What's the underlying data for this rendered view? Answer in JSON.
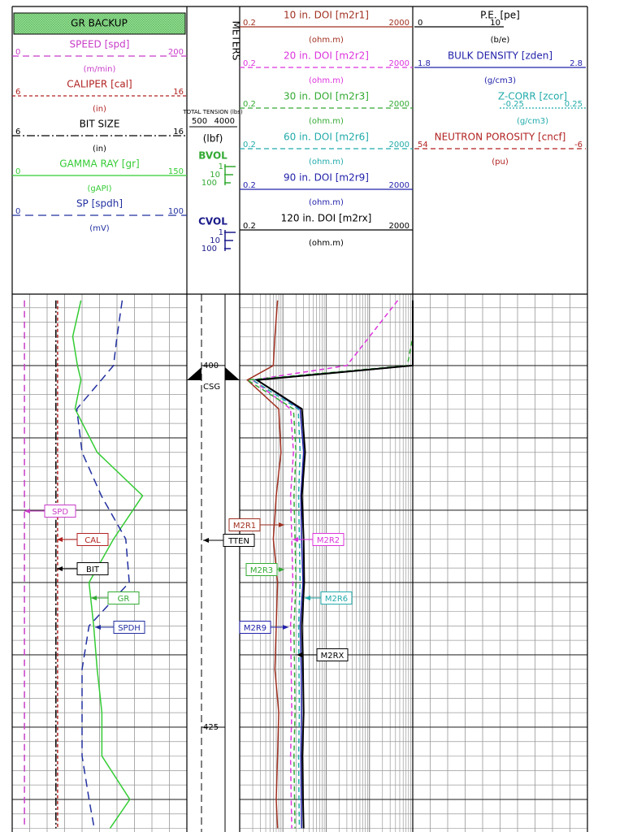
{
  "gr_track": {
    "title": "GR BACKUP",
    "curves": [
      {
        "name": "SPEED [spd]",
        "left": 0,
        "right": 200,
        "unit": "(m/min)",
        "color": "#c83cc8",
        "dash": "8 5",
        "values": [
          14,
          14,
          14,
          14,
          14,
          14,
          14,
          14,
          14,
          14,
          14,
          14,
          14,
          14,
          14
        ]
      },
      {
        "name": "CALIPER [cal]",
        "left": 6,
        "right": 16,
        "unit": "(in)",
        "color": "#b22222",
        "dash": "4 3",
        "values": [
          8.6,
          8.6,
          8.6,
          8.6,
          8.6,
          8.6,
          8.6,
          8.6,
          8.6,
          8.6,
          8.6,
          8.6,
          8.6,
          8.6,
          8.6
        ]
      },
      {
        "name": "BIT SIZE",
        "left": 6,
        "right": 16,
        "unit": "(in)",
        "color": "#000000",
        "dash": "10 3 2 3",
        "values": [
          8.5,
          8.5,
          8.5,
          8.5,
          8.5,
          8.5,
          8.5,
          8.5,
          8.5,
          8.5,
          8.5,
          8.5,
          8.5,
          8.5,
          8.5
        ]
      },
      {
        "name": "GAMMA RAY [gr]",
        "left": 0,
        "right": 150,
        "unit": "(gAPI)",
        "color": "#33cc33",
        "dash": "",
        "values": [
          59,
          52,
          56,
          59,
          54,
          73,
          112,
          87,
          66,
          70,
          73,
          77,
          77,
          101,
          84
        ]
      },
      {
        "name": "SP [spdh]",
        "left": 0,
        "right": 100,
        "unit": "(mV)",
        "color": "#2230a0",
        "dash": "10 6",
        "values": [
          63,
          60,
          58,
          51,
          37,
          40,
          51,
          65,
          67,
          44,
          40,
          40,
          40,
          44,
          47
        ]
      }
    ]
  },
  "depth_track": {
    "title": "METERS",
    "tension": {
      "name": "TOTAL TENSION (lbs)",
      "left": 500,
      "right": 4000,
      "unit": "(lbf)"
    },
    "bvol": {
      "name": "BVOL",
      "ticks": [
        1,
        10,
        100
      ]
    },
    "cvol": {
      "name": "CVOL",
      "ticks": [
        1,
        10,
        100
      ]
    },
    "casing": "CSG"
  },
  "resistivity_track": {
    "scale": "log",
    "curves": [
      {
        "name": "10 in. DOI [m2r1]",
        "left": 0.2,
        "right": 2000,
        "unit": "(ohm.m)",
        "color": "#a03020",
        "dash": "",
        "values": [
          1.5,
          1.3,
          1.2,
          0.3,
          1.6,
          1.8,
          1.4,
          1.2,
          1.5,
          1.4,
          1.3,
          1.6,
          1.5,
          1.4,
          1.5
        ]
      },
      {
        "name": "20 in. DOI [m2r2]",
        "left": 0.2,
        "right": 2000,
        "unit": "(ohm.m)",
        "color": "#dd33dd",
        "dash": "6 4",
        "values": [
          900,
          200,
          60,
          0.4,
          3,
          3.5,
          3,
          3.2,
          3.4,
          3,
          3.1,
          3.2,
          3,
          3.1,
          3.2
        ]
      },
      {
        "name": "30 in. DOI [m2r3]",
        "left": 0.2,
        "right": 2000,
        "unit": "(ohm.m)",
        "color": "#33aa33",
        "dash": "6 4",
        "values": [
          2000,
          2000,
          1500,
          0.3,
          3.5,
          4,
          3.6,
          3.8,
          4,
          3.6,
          3.7,
          3.8,
          3.6,
          3.7,
          3.8
        ]
      },
      {
        "name": "60 in. DOI [m2r6]",
        "left": 0.2,
        "right": 2000,
        "unit": "(ohm.m)",
        "color": "#22aaaa",
        "dash": "6 4",
        "values": [
          2000,
          2000,
          2000,
          0.4,
          4.5,
          5,
          4.6,
          4.8,
          5,
          4.6,
          4.7,
          4.8,
          4.6,
          4.7,
          4.8
        ]
      },
      {
        "name": "90 in. DOI [m2r9]",
        "left": 0.2,
        "right": 2000,
        "unit": "(ohm.m)",
        "color": "#2222aa",
        "dash": "",
        "values": [
          2000,
          2000,
          2000,
          0.5,
          5,
          6,
          5.2,
          5.4,
          5.8,
          5,
          5.3,
          5.4,
          5.2,
          5.3,
          5.4
        ]
      },
      {
        "name": "120 in. DOI [m2rx]",
        "left": 0.2,
        "right": 2000,
        "unit": "(ohm.m)",
        "color": "#000000",
        "dash": "",
        "values": [
          2000,
          2000,
          2000,
          0.5,
          5.5,
          6.5,
          5.5,
          6,
          6.2,
          5.5,
          5.8,
          6,
          5.6,
          5.8,
          6
        ]
      }
    ]
  },
  "density_track": {
    "curves": [
      {
        "name": "P.E. [pe]",
        "left": 0,
        "right": 10,
        "unit": "(b/e)",
        "color": "#000000",
        "dash": ""
      },
      {
        "name": "BULK DENSITY [zden]",
        "left": 1.8,
        "right": 2.8,
        "unit": "(g/cm3)",
        "color": "#2222aa",
        "dash": ""
      },
      {
        "name": "Z-CORR [zcor]",
        "left": -0.25,
        "right": 0.25,
        "unit": "(g/cm3)",
        "color": "#22aaaa",
        "dash": "2 2"
      },
      {
        "name": "NEUTRON POROSITY [cncf]",
        "left": 54,
        "right": -6,
        "unit": "(pu)",
        "color": "#b22222",
        "dash": "6 4"
      }
    ]
  },
  "depth": {
    "ylim": [
      395.06,
      432.25
    ],
    "yticks": [
      400,
      425
    ],
    "samples": [
      395.5,
      398,
      400,
      401,
      403,
      406,
      409,
      412,
      415,
      418,
      421,
      424,
      427,
      430,
      432
    ]
  },
  "flags": [
    "SPD",
    "CAL",
    "BIT",
    "GR",
    "SPDH",
    "M2R1",
    "TTEN",
    "M2R2",
    "M2R3",
    "M2R6",
    "M2R9",
    "M2RX"
  ]
}
